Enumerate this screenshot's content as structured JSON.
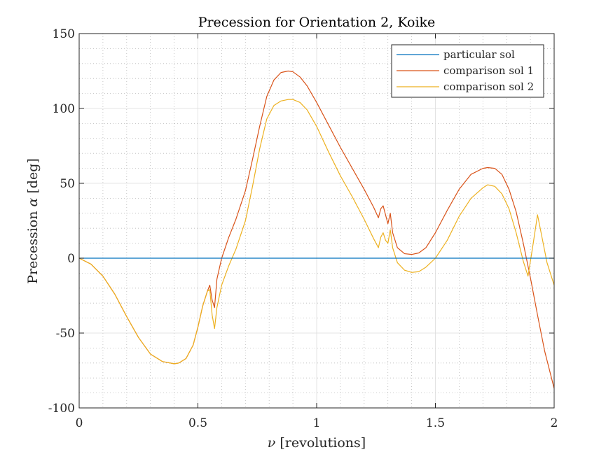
{
  "chart_data": {
    "type": "line",
    "title": "Precession for Orientation 2, Koike",
    "xlabel_symbol": "ν",
    "xlabel_text": " [revolutions]",
    "ylabel_text": "Precession ",
    "ylabel_symbol": "α",
    "ylabel_unit": " [deg]",
    "xlim": [
      0,
      2
    ],
    "ylim": [
      -100,
      150
    ],
    "xticks": [
      0,
      0.5,
      1,
      1.5,
      2
    ],
    "xtick_labels": [
      "0",
      "0.5",
      "1",
      "1.5",
      "2"
    ],
    "yticks": [
      -100,
      -50,
      0,
      50,
      100,
      150
    ],
    "ytick_labels": [
      "-100",
      "-50",
      "0",
      "50",
      "100",
      "150"
    ],
    "grid": "on, major and minor dotted",
    "legend_position": "top-right",
    "series": [
      {
        "name": "particular sol",
        "color": "#0072BD",
        "x": [
          0,
          2
        ],
        "y": [
          0,
          0
        ]
      },
      {
        "name": "comparison sol 1",
        "color": "#D95319",
        "x": [
          0,
          0.05,
          0.1,
          0.15,
          0.2,
          0.25,
          0.3,
          0.35,
          0.4,
          0.42,
          0.45,
          0.48,
          0.5,
          0.52,
          0.54,
          0.55,
          0.56,
          0.57,
          0.58,
          0.6,
          0.63,
          0.66,
          0.7,
          0.73,
          0.76,
          0.79,
          0.82,
          0.85,
          0.88,
          0.9,
          0.93,
          0.96,
          1.0,
          1.05,
          1.1,
          1.15,
          1.2,
          1.24,
          1.26,
          1.27,
          1.28,
          1.29,
          1.3,
          1.31,
          1.32,
          1.34,
          1.37,
          1.4,
          1.43,
          1.46,
          1.5,
          1.55,
          1.6,
          1.65,
          1.7,
          1.72,
          1.75,
          1.78,
          1.81,
          1.84,
          1.87,
          1.9,
          1.93,
          1.96,
          2.0
        ],
        "y": [
          0,
          -4,
          -12,
          -24,
          -39,
          -53,
          -64,
          -69,
          -70.5,
          -70,
          -67,
          -58,
          -46,
          -32,
          -22,
          -18,
          -28,
          -33,
          -14,
          0,
          14,
          26,
          45,
          66,
          88,
          108,
          119,
          124,
          125,
          124.5,
          121,
          115,
          104,
          89,
          74,
          60,
          46,
          34,
          27,
          33,
          35,
          29,
          23,
          30,
          17,
          7,
          3,
          2.5,
          3.5,
          7,
          17,
          32,
          46,
          56,
          60,
          60.5,
          60,
          56,
          46,
          31,
          10,
          -13,
          -38,
          -62,
          -87
        ]
      },
      {
        "name": "comparison sol 2",
        "color": "#EDB120",
        "x": [
          0,
          0.05,
          0.1,
          0.15,
          0.2,
          0.25,
          0.3,
          0.35,
          0.4,
          0.42,
          0.45,
          0.48,
          0.5,
          0.52,
          0.54,
          0.55,
          0.56,
          0.57,
          0.58,
          0.6,
          0.63,
          0.66,
          0.7,
          0.73,
          0.76,
          0.79,
          0.82,
          0.85,
          0.88,
          0.9,
          0.93,
          0.96,
          1.0,
          1.05,
          1.1,
          1.15,
          1.2,
          1.24,
          1.26,
          1.27,
          1.28,
          1.29,
          1.3,
          1.31,
          1.32,
          1.34,
          1.37,
          1.4,
          1.43,
          1.46,
          1.5,
          1.55,
          1.6,
          1.65,
          1.7,
          1.72,
          1.75,
          1.78,
          1.81,
          1.84,
          1.87,
          1.89,
          1.91,
          1.93,
          1.95,
          1.97,
          2.0
        ],
        "y": [
          0,
          -4,
          -12,
          -24,
          -39,
          -53,
          -64,
          -69,
          -70.5,
          -70,
          -67,
          -58,
          -46,
          -32,
          -22,
          -21,
          -38,
          -47,
          -33,
          -18,
          -5,
          6,
          25,
          48,
          73,
          93,
          102,
          105,
          106,
          106,
          104,
          99,
          88,
          71,
          55,
          41,
          26,
          13,
          7,
          14,
          17,
          12,
          10,
          19,
          7,
          -3,
          -8,
          -9.5,
          -9,
          -6,
          0,
          12,
          28,
          40,
          47,
          49,
          48,
          43,
          33,
          17,
          -2,
          -12,
          8,
          29,
          13,
          -3,
          -18
        ]
      }
    ]
  }
}
